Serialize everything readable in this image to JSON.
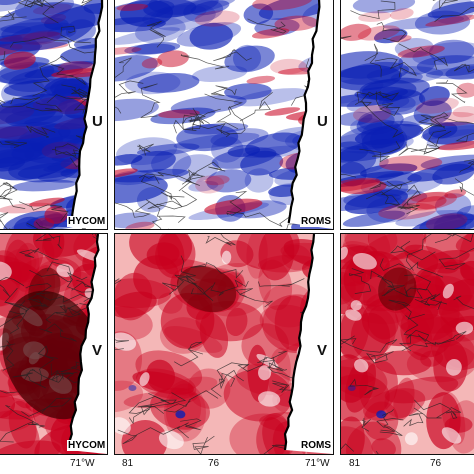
{
  "rows": [
    {
      "variable": "U",
      "panels": [
        {
          "model": "HYCOM",
          "show_model": true
        },
        {
          "model": "ROMS",
          "show_model": true
        },
        {
          "model": "",
          "show_model": false
        }
      ]
    },
    {
      "variable": "V",
      "panels": [
        {
          "model": "HYCOM",
          "show_model": true
        },
        {
          "model": "ROMS",
          "show_model": true
        },
        {
          "model": "",
          "show_model": false
        }
      ]
    }
  ],
  "xticks": {
    "col1_right": "71°W",
    "col2_left": "81",
    "col2_mid": "76",
    "col2_right": "71°W",
    "col3_left": "81",
    "col3_mid": "76"
  },
  "colors": {
    "positive": "#c8001e",
    "negative": "#0a1fb4",
    "neutral": "#ffffff",
    "contour": "#222222"
  }
}
